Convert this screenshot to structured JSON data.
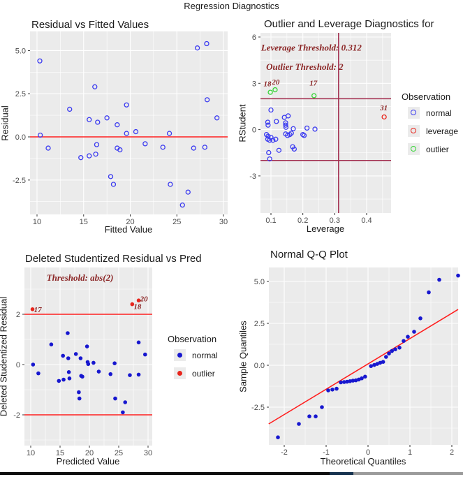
{
  "window": {
    "main_title": "Regression Diagnostics"
  },
  "colors": {
    "panel_bg": "#ebebeb",
    "grid": "#ffffff",
    "tick_text": "#4d4d4d",
    "axis_text": "#1a1a1a",
    "annotation_text": "#8b2525",
    "bright_red_line": "#ff1f1f",
    "maroon_line": "#a22c4e",
    "blue_open": "#3b3bf0",
    "blue_fill": "#1717cf",
    "red_point": "#e8251c",
    "green_point": "#35d435"
  },
  "bottom_bar": {
    "segments": [
      {
        "name": "thumb-dark",
        "color": "#0d0d0d"
      },
      {
        "name": "thumb-accent",
        "color": "#16324f"
      },
      {
        "name": "track",
        "color": "#9b9b9b"
      }
    ]
  },
  "chart_data": [
    {
      "type": "scatter",
      "title": "Residual vs Fitted Values",
      "xlabel": "Fitted Value",
      "ylabel": "Residual",
      "xlim": [
        9.25,
        30.45
      ],
      "ylim": [
        -4.5,
        6.1
      ],
      "x_ticks": [
        {
          "v": 10,
          "t": "10"
        },
        {
          "v": 15,
          "t": "15"
        },
        {
          "v": 20,
          "t": "20"
        },
        {
          "v": 25,
          "t": "25"
        },
        {
          "v": 30,
          "t": "30"
        }
      ],
      "y_ticks": [
        {
          "v": 5,
          "t": "5.0"
        },
        {
          "v": 2.5,
          "t": "2.5"
        },
        {
          "v": 0,
          "t": "0.0"
        },
        {
          "v": -2.5,
          "t": "-2.5"
        }
      ],
      "grid": true,
      "ref_lines": [
        {
          "orient": "h",
          "value": 0,
          "color": "#ff1f1f",
          "width": 1.6
        }
      ],
      "series": [
        {
          "name": "residuals",
          "marker": "open",
          "color": "#3b3bf0",
          "points": [
            [
              10.3,
              4.4
            ],
            [
              10.35,
              0.1
            ],
            [
              11.2,
              -0.65
            ],
            [
              13.5,
              1.6
            ],
            [
              14.7,
              -1.2
            ],
            [
              15.6,
              1.0
            ],
            [
              15.6,
              -1.1
            ],
            [
              16.2,
              2.9
            ],
            [
              16.5,
              0.85
            ],
            [
              16.4,
              -0.45
            ],
            [
              16.3,
              -1.0
            ],
            [
              17.5,
              1.1
            ],
            [
              17.9,
              -2.3
            ],
            [
              18.2,
              -2.75
            ],
            [
              18.6,
              0.7
            ],
            [
              18.6,
              -0.65
            ],
            [
              18.9,
              -0.75
            ],
            [
              19.6,
              1.85
            ],
            [
              19.6,
              0.2
            ],
            [
              20.6,
              0.3
            ],
            [
              21.6,
              -0.4
            ],
            [
              23.5,
              -0.6
            ],
            [
              24.2,
              0.2
            ],
            [
              24.3,
              -2.75
            ],
            [
              25.6,
              -3.95
            ],
            [
              26.2,
              -3.2
            ],
            [
              26.8,
              -0.65
            ],
            [
              27.2,
              5.15
            ],
            [
              28.2,
              5.4
            ],
            [
              28.25,
              2.15
            ],
            [
              28.0,
              -0.6
            ],
            [
              29.3,
              1.1
            ]
          ]
        }
      ],
      "annotations": [],
      "point_labels": []
    },
    {
      "type": "scatter",
      "title": "Outlier and Leverage Diagnostics for",
      "xlabel": "Leverage",
      "ylabel": "RStudent",
      "xlim": [
        0.067,
        0.476
      ],
      "ylim": [
        -5.4,
        6.0
      ],
      "x_ticks": [
        {
          "v": 0.1,
          "t": "0.1"
        },
        {
          "v": 0.2,
          "t": "0.2"
        },
        {
          "v": 0.3,
          "t": "0.3"
        },
        {
          "v": 0.4,
          "t": "0.4"
        }
      ],
      "y_ticks": [
        {
          "v": 6,
          "t": "6"
        },
        {
          "v": 3,
          "t": "3"
        },
        {
          "v": 0,
          "t": "0"
        },
        {
          "v": -3,
          "t": "-3"
        }
      ],
      "grid": true,
      "ref_lines": [
        {
          "orient": "v",
          "value": 0.312,
          "color": "#a22c4e",
          "width": 1.5
        },
        {
          "orient": "h",
          "value": 2,
          "color": "#a22c4e",
          "width": 1.5
        },
        {
          "orient": "h",
          "value": -2,
          "color": "#a22c4e",
          "width": 1.5
        }
      ],
      "series": [
        {
          "name": "normal",
          "marker": "open",
          "color": "#3b3bf0",
          "points": [
            [
              0.1,
              1.27
            ],
            [
              0.09,
              0.48
            ],
            [
              0.091,
              0.29
            ],
            [
              0.117,
              0.53
            ],
            [
              0.142,
              0.79
            ],
            [
              0.154,
              0.89
            ],
            [
              0.146,
              0.44
            ],
            [
              0.146,
              0.29
            ],
            [
              0.147,
              0.15
            ],
            [
              0.17,
              0.06
            ],
            [
              0.213,
              0.1
            ],
            [
              0.238,
              0.03
            ],
            [
              0.086,
              -0.32
            ],
            [
              0.091,
              -0.43
            ],
            [
              0.1,
              -0.5
            ],
            [
              0.09,
              -0.62
            ],
            [
              0.096,
              -0.69
            ],
            [
              0.106,
              -0.69
            ],
            [
              0.115,
              -0.62
            ],
            [
              0.146,
              -0.28
            ],
            [
              0.152,
              -0.38
            ],
            [
              0.159,
              -0.32
            ],
            [
              0.164,
              -0.23
            ],
            [
              0.2,
              -0.32
            ],
            [
              0.204,
              -0.38
            ],
            [
              0.168,
              -1.11
            ],
            [
              0.173,
              -1.26
            ],
            [
              0.125,
              -1.34
            ],
            [
              0.093,
              -1.49
            ],
            [
              0.096,
              -1.9
            ]
          ]
        },
        {
          "name": "outlier",
          "marker": "open",
          "color": "#35d435",
          "points": [
            [
              0.098,
              2.42
            ],
            [
              0.113,
              2.58
            ],
            [
              0.235,
              2.2
            ]
          ]
        },
        {
          "name": "leverage",
          "marker": "open",
          "color": "#e8251c",
          "points": [
            [
              0.455,
              0.82
            ]
          ]
        }
      ],
      "annotations": [
        {
          "text": "Leverage Threshold: 0.312",
          "x": 0.069,
          "y": 5.3,
          "anchor": "start",
          "size": 13
        },
        {
          "text": "Outlier Threshold: 2",
          "x": 0.085,
          "y": 4.05,
          "anchor": "start",
          "size": 13
        }
      ],
      "point_labels": [
        {
          "text": "18",
          "x": 0.089,
          "y": 2.98
        },
        {
          "text": "20",
          "x": 0.115,
          "y": 3.1
        },
        {
          "text": "17",
          "x": 0.233,
          "y": 3.03
        },
        {
          "text": "31",
          "x": 0.454,
          "y": 1.44
        }
      ],
      "legend": {
        "title": "Observation",
        "entries": [
          {
            "label": "normal",
            "marker": "open",
            "color": "#3b3bf0"
          },
          {
            "label": "leverage",
            "marker": "open",
            "color": "#e8251c"
          },
          {
            "label": "outlier",
            "marker": "open",
            "color": "#35d435"
          }
        ]
      }
    },
    {
      "type": "scatter",
      "title": "Deleted Studentized Residual vs Pred",
      "xlabel": "Predicted Value",
      "ylabel": "Deleted Studentized Residual",
      "xlim": [
        8.9,
        30.7
      ],
      "ylim": [
        -3.2,
        3.85
      ],
      "x_ticks": [
        {
          "v": 10,
          "t": "10"
        },
        {
          "v": 15,
          "t": "15"
        },
        {
          "v": 20,
          "t": "20"
        },
        {
          "v": 25,
          "t": "25"
        },
        {
          "v": 30,
          "t": "30"
        }
      ],
      "y_ticks": [
        {
          "v": 2,
          "t": "2"
        },
        {
          "v": 0,
          "t": "0"
        },
        {
          "v": -2,
          "t": "-2"
        }
      ],
      "grid": true,
      "ref_lines": [
        {
          "orient": "h",
          "value": 2,
          "color": "#ff1f1f",
          "width": 1.6
        },
        {
          "orient": "h",
          "value": -2,
          "color": "#ff1f1f",
          "width": 1.6
        }
      ],
      "series": [
        {
          "name": "normal",
          "marker": "filled",
          "color": "#1717cf",
          "points": [
            [
              10.4,
              0.0
            ],
            [
              11.3,
              -0.35
            ],
            [
              13.5,
              0.8
            ],
            [
              14.8,
              -0.65
            ],
            [
              15.5,
              0.35
            ],
            [
              15.6,
              -0.6
            ],
            [
              16.3,
              1.25
            ],
            [
              16.4,
              0.25
            ],
            [
              16.5,
              -0.3
            ],
            [
              16.6,
              -0.55
            ],
            [
              17.7,
              0.42
            ],
            [
              18.2,
              -1.1
            ],
            [
              18.3,
              -1.35
            ],
            [
              18.5,
              0.25
            ],
            [
              18.6,
              -0.45
            ],
            [
              18.8,
              -0.48
            ],
            [
              19.6,
              0.72
            ],
            [
              19.7,
              0.1
            ],
            [
              19.8,
              0.02
            ],
            [
              20.7,
              0.07
            ],
            [
              21.6,
              -0.28
            ],
            [
              23.6,
              -0.38
            ],
            [
              24.3,
              0.05
            ],
            [
              24.4,
              -1.35
            ],
            [
              25.7,
              -1.9
            ],
            [
              26.1,
              -1.5
            ],
            [
              26.9,
              -0.42
            ],
            [
              28.4,
              0.88
            ],
            [
              28.4,
              -0.4
            ],
            [
              29.5,
              0.4
            ]
          ]
        },
        {
          "name": "outlier",
          "marker": "filled",
          "color": "#e8251c",
          "points": [
            [
              10.3,
              2.2
            ],
            [
              27.3,
              2.4
            ],
            [
              28.4,
              2.55
            ]
          ]
        }
      ],
      "annotations": [
        {
          "text": "Threshold: abs(2)",
          "x": 18.4,
          "y": 3.45,
          "anchor": "middle",
          "size": 13
        }
      ],
      "point_labels": [
        {
          "text": "17",
          "x": 11.2,
          "y": 2.2
        },
        {
          "text": "18",
          "x": 28.2,
          "y": 2.32
        },
        {
          "text": "20",
          "x": 29.3,
          "y": 2.62
        }
      ],
      "legend": {
        "title": "Observation",
        "entries": [
          {
            "label": "normal",
            "marker": "filled",
            "color": "#1717cf"
          },
          {
            "label": "outlier",
            "marker": "filled",
            "color": "#e8251c"
          }
        ]
      }
    },
    {
      "type": "scatter",
      "title": "Normal Q-Q Plot",
      "xlabel": "Theoretical Quantiles",
      "ylabel": "Sample Quantiles",
      "xlim": [
        -2.37,
        2.15
      ],
      "ylim": [
        -4.75,
        5.85
      ],
      "x_ticks": [
        {
          "v": -2,
          "t": "-2"
        },
        {
          "v": -1,
          "t": "-1"
        },
        {
          "v": 0,
          "t": "0"
        },
        {
          "v": 1,
          "t": "1"
        },
        {
          "v": 2,
          "t": "2"
        }
      ],
      "y_ticks": [
        {
          "v": 5,
          "t": "5.0"
        },
        {
          "v": 2.5,
          "t": "2.5"
        },
        {
          "v": 0,
          "t": "0.0"
        },
        {
          "v": -2.5,
          "t": "-2.5"
        }
      ],
      "grid": true,
      "ref_lines": [],
      "qq_line": {
        "x1": -2.37,
        "y1": -3.5,
        "x2": 2.15,
        "y2": 3.33,
        "color": "#ff1f1f",
        "width": 1.6
      },
      "series": [
        {
          "name": "sample",
          "marker": "filled",
          "color": "#1717cf",
          "points": [
            [
              -2.15,
              -4.3
            ],
            [
              -1.65,
              -3.5
            ],
            [
              -1.4,
              -3.05
            ],
            [
              -1.25,
              -3.05
            ],
            [
              -1.1,
              -2.5
            ],
            [
              -0.95,
              -1.5
            ],
            [
              -0.85,
              -1.45
            ],
            [
              -0.75,
              -1.4
            ],
            [
              -0.65,
              -1.02
            ],
            [
              -0.57,
              -1.0
            ],
            [
              -0.5,
              -0.98
            ],
            [
              -0.43,
              -0.95
            ],
            [
              -0.36,
              -0.92
            ],
            [
              -0.29,
              -0.9
            ],
            [
              -0.22,
              -0.85
            ],
            [
              -0.15,
              -0.78
            ],
            [
              -0.07,
              -0.68
            ],
            [
              0.07,
              -0.05
            ],
            [
              0.15,
              0.02
            ],
            [
              0.22,
              0.08
            ],
            [
              0.29,
              0.15
            ],
            [
              0.36,
              0.2
            ],
            [
              0.43,
              0.5
            ],
            [
              0.5,
              0.7
            ],
            [
              0.57,
              0.85
            ],
            [
              0.65,
              0.95
            ],
            [
              0.75,
              1.05
            ],
            [
              0.85,
              1.45
            ],
            [
              0.95,
              1.7
            ],
            [
              1.1,
              2.0
            ],
            [
              1.25,
              2.8
            ],
            [
              1.45,
              4.35
            ],
            [
              1.7,
              5.1
            ],
            [
              2.15,
              5.35
            ]
          ]
        }
      ],
      "annotations": [],
      "point_labels": []
    }
  ]
}
